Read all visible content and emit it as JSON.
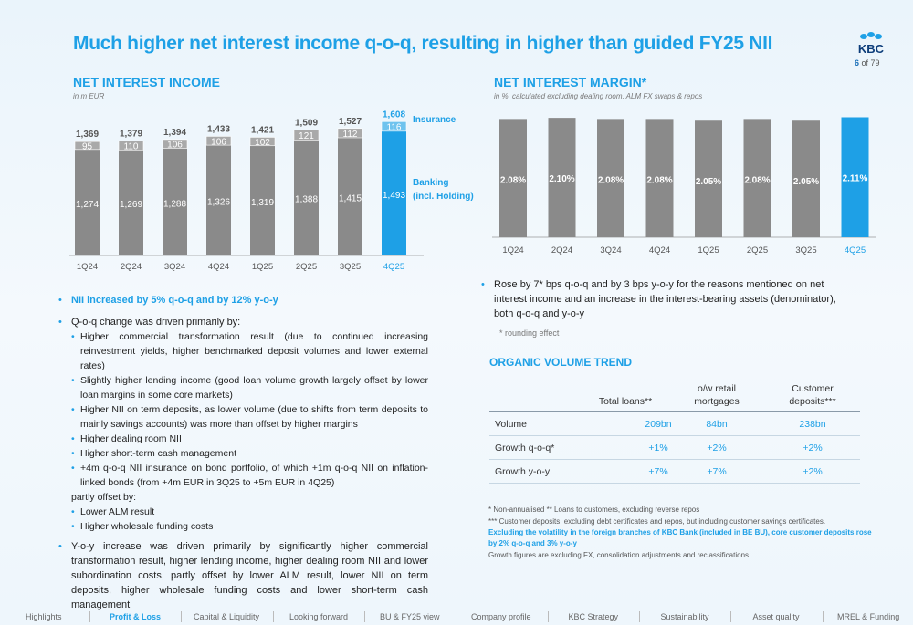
{
  "page": {
    "title": "Much higher net interest income q-o-q, resulting in higher than guided FY25 NII",
    "page_number": "6",
    "page_total": "of 79",
    "logo_text": "KBC"
  },
  "nii": {
    "heading": "NET INTEREST INCOME",
    "unit": "in m EUR",
    "legend_insurance": "Insurance",
    "legend_banking_1": "Banking",
    "legend_banking_2": "(incl. Holding)"
  },
  "nim": {
    "heading": "NET INTEREST MARGIN*",
    "unit": "in %, calculated excluding dealing room, ALM FX swaps & repos"
  },
  "chart_data": [
    {
      "type": "bar",
      "stacked": true,
      "title": "NET INTEREST INCOME",
      "subtitle": "in m EUR",
      "categories": [
        "1Q24",
        "2Q24",
        "3Q24",
        "4Q24",
        "1Q25",
        "2Q25",
        "3Q25",
        "4Q25"
      ],
      "series": [
        {
          "name": "Banking (incl. Holding)",
          "values": [
            1274,
            1269,
            1288,
            1326,
            1319,
            1388,
            1415,
            1493
          ],
          "labels": [
            "1,274",
            "1,269",
            "1,288",
            "1,326",
            "1,319",
            "1,388",
            "1,415",
            "1,493"
          ]
        },
        {
          "name": "Insurance",
          "values": [
            95,
            110,
            106,
            106,
            102,
            121,
            112,
            116
          ],
          "labels": [
            "95",
            "110",
            "106",
            "106",
            "102",
            "121",
            "112",
            "116"
          ]
        }
      ],
      "totals": [
        1369,
        1379,
        1394,
        1433,
        1421,
        1509,
        1527,
        1608
      ],
      "total_labels": [
        "1,369",
        "1,379",
        "1,394",
        "1,433",
        "1,421",
        "1,509",
        "1,527",
        "1,608"
      ],
      "highlight_index": 7,
      "ylim": [
        0,
        1700
      ],
      "colors": {
        "banking": "#8a8a8a",
        "insurance": "#a9a9a9",
        "highlight": "#1ea0e6",
        "highlight_insurance": "#6fc3ee"
      }
    },
    {
      "type": "bar",
      "title": "NET INTEREST MARGIN*",
      "subtitle": "in %, calculated excluding dealing room, ALM FX swaps & repos",
      "categories": [
        "1Q24",
        "2Q24",
        "3Q24",
        "4Q24",
        "1Q25",
        "2Q25",
        "3Q25",
        "4Q25"
      ],
      "values": [
        2.08,
        2.1,
        2.08,
        2.08,
        2.05,
        2.08,
        2.05,
        2.11
      ],
      "labels": [
        "2.08%",
        "2.10%",
        "2.08%",
        "2.08%",
        "2.05%",
        "2.08%",
        "2.05%",
        "2.11%"
      ],
      "highlight_index": 7,
      "ylim": [
        0,
        2.15
      ],
      "colors": {
        "bar": "#8a8a8a",
        "highlight": "#1ea0e6"
      }
    }
  ],
  "left_text": {
    "b1": "NII increased by 5% q-o-q and by 12% y-o-y",
    "b2": "Q-o-q change was driven primarily by:",
    "s1": "Higher commercial transformation result (due to continued increasing reinvestment yields, higher benchmarked deposit volumes and lower external rates)",
    "s2": "Slightly higher lending income (good loan volume growth largely offset by lower loan margins in some core markets)",
    "s3": "Higher NII on term deposits, as lower volume (due to shifts from term deposits to mainly savings accounts) was more than offset by higher margins",
    "s4": "Higher dealing room NII",
    "s5": "Higher short-term cash management",
    "s6": "+4m q-o-q NII insurance on bond portfolio, of which +1m q-o-q NII on inflation-linked bonds (from +4m EUR in 3Q25 to +5m EUR in 4Q25)",
    "partly": "partly offset by:",
    "s7": "Lower ALM result",
    "s8": "Higher wholesale funding costs",
    "b3": "Y-o-y increase was driven primarily by significantly higher commercial transformation result, higher lending income, higher dealing room NII and lower subordination costs, partly offset by lower ALM result, lower NII on term deposits, higher wholesale funding costs and lower short-term cash management"
  },
  "right_text": {
    "b1": "Rose by 7* bps q-o-q and by 3 bps y-o-y for the reasons mentioned on net interest income and an increase in the interest-bearing assets (denominator), both q-o-q and y-o-y",
    "note": "*  rounding effect"
  },
  "volume": {
    "heading": "ORGANIC VOLUME TREND",
    "col1": "Total loans**",
    "col2_1": "o/w retail",
    "col2_2": "mortgages",
    "col3_1": "Customer",
    "col3_2": "deposits***",
    "rows": [
      {
        "label": "Volume",
        "c1": "209bn",
        "c2": "84bn",
        "c3": "238bn"
      },
      {
        "label": "Growth q-o-q*",
        "c1": "+1%",
        "c2": "+2%",
        "c3": "+2%"
      },
      {
        "label": "Growth y-o-y",
        "c1": "+7%",
        "c2": "+7%",
        "c3": "+2%"
      }
    ]
  },
  "footnotes": {
    "f1": "* Non-annualised    ** Loans to customers, excluding reverse repos",
    "f2": "*** Customer deposits, excluding debt certificates and repos, but including customer savings certificates.",
    "f3": "Excluding the volatility in the foreign branches of KBC Bank (included in BE BU), core customer deposits rose by 2% q-o-q and 3% y-o-y",
    "f4": "Growth figures are excluding FX, consolidation adjustments and reclassifications."
  },
  "nav": {
    "items": [
      "Highlights",
      "Profit & Loss",
      "Capital & Liquidity",
      "Looking forward",
      "BU & FY25 view",
      "Company profile",
      "KBC Strategy",
      "Sustainability",
      "Asset quality",
      "MREL & Funding"
    ],
    "active": "Profit & Loss"
  }
}
